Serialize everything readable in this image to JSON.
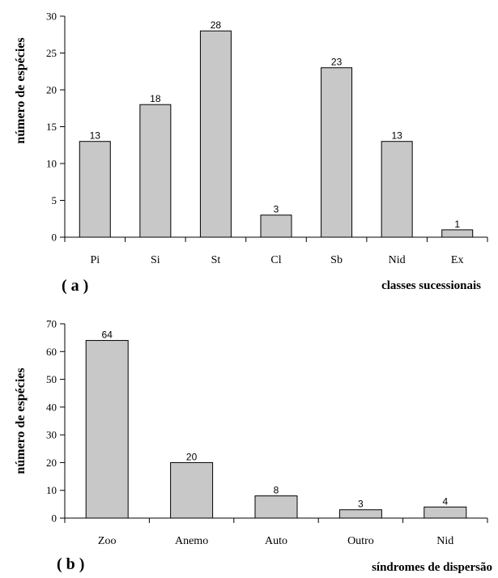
{
  "colors": {
    "bar_fill": "#c8c8c8",
    "bar_stroke": "#000000",
    "axis": "#000000"
  },
  "chart_data": [
    {
      "type": "bar",
      "panel_label": "( a )",
      "categories": [
        "Pi",
        "Si",
        "St",
        "Cl",
        "Sb",
        "Nid",
        "Ex"
      ],
      "values": [
        13,
        18,
        28,
        3,
        23,
        13,
        1
      ],
      "data_labels": [
        "13",
        "18",
        "28",
        "3",
        "23",
        "13",
        "1"
      ],
      "xlabel": "classes sucessionais",
      "ylabel": "número de espécies",
      "ylim": [
        0,
        30
      ],
      "yticks": [
        0,
        5,
        10,
        15,
        20,
        25,
        30
      ],
      "grid": false
    },
    {
      "type": "bar",
      "panel_label": "( b )",
      "categories": [
        "Zoo",
        "Anemo",
        "Auto",
        "Outro",
        "Nid"
      ],
      "values": [
        64,
        20,
        8,
        3,
        4
      ],
      "data_labels": [
        "64",
        "20",
        "8",
        "3",
        "4"
      ],
      "xlabel": "síndromes de dispersão",
      "ylabel": "número de espécies",
      "ylim": [
        0,
        70
      ],
      "yticks": [
        0,
        10,
        20,
        30,
        40,
        50,
        60,
        70
      ],
      "grid": false
    }
  ]
}
